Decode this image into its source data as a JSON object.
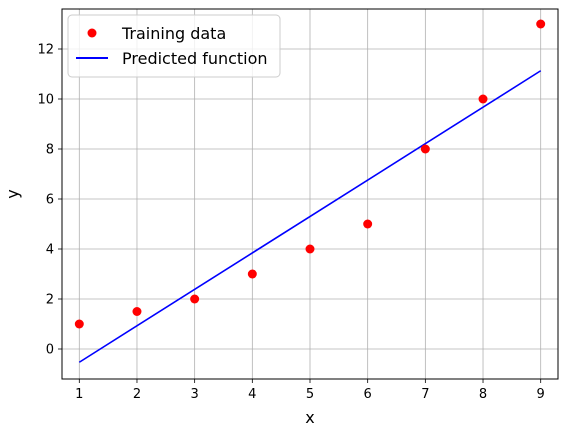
{
  "chart_data": {
    "type": "scatter",
    "title": "",
    "xlabel": "x",
    "ylabel": "y",
    "xlim": [
      0.7,
      9.3
    ],
    "ylim": [
      -1.2,
      13.6
    ],
    "xticks": [
      1,
      2,
      3,
      4,
      5,
      6,
      7,
      8,
      9
    ],
    "yticks": [
      0,
      2,
      4,
      6,
      8,
      10,
      12
    ],
    "grid": true,
    "legend_position": "top-left",
    "series": [
      {
        "name": "Training data",
        "type": "scatter",
        "color": "#ff0000",
        "marker": "circle",
        "x": [
          1,
          2,
          3,
          4,
          5,
          6,
          7,
          8,
          9
        ],
        "y": [
          1,
          1.5,
          2,
          3,
          4,
          5,
          8,
          10,
          13
        ]
      },
      {
        "name": "Predicted function",
        "type": "line",
        "color": "#0000ff",
        "x": [
          1,
          9
        ],
        "y": [
          -0.53,
          11.13
        ]
      }
    ]
  }
}
